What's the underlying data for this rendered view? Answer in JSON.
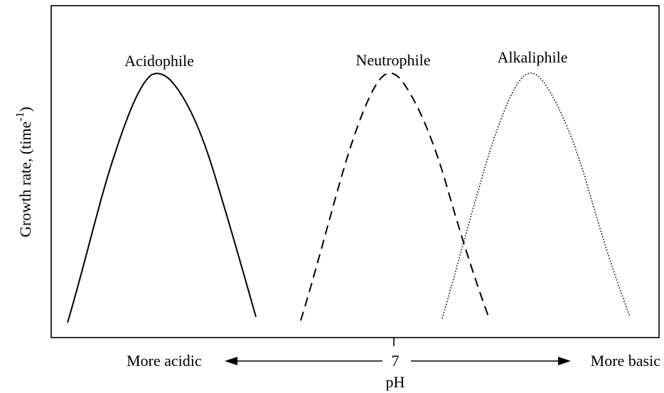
{
  "diagram": {
    "ylabel_main": "Growth rate, (time",
    "ylabel_exponent": "-1",
    "ylabel_close": ")",
    "ph_label": "pH",
    "seven_label": "7",
    "left_arrow_label": "More acidic",
    "right_arrow_label": "More basic"
  },
  "curves": [
    {
      "name": "Acidophile",
      "label": "Acidophile",
      "line_style": "solid"
    },
    {
      "name": "Neutrophile",
      "label": "Neutrophile",
      "line_style": "dashed"
    },
    {
      "name": "Alkaliphile",
      "label": "Alkaliphile",
      "line_style": "dotted"
    }
  ]
}
